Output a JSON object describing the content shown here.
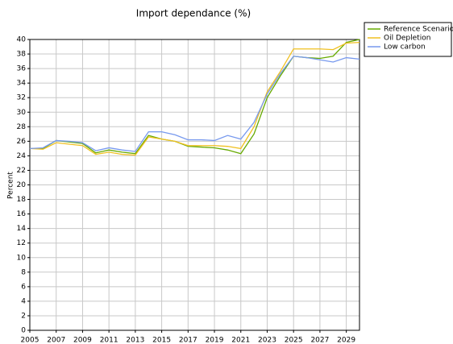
{
  "chart_data": {
    "type": "line",
    "title": "Import dependance (%)",
    "y_label": "Percent",
    "x": [
      2005,
      2006,
      2007,
      2008,
      2009,
      2010,
      2011,
      2012,
      2013,
      2014,
      2015,
      2016,
      2017,
      2018,
      2019,
      2020,
      2021,
      2022,
      2023,
      2024,
      2025,
      2026,
      2027,
      2028,
      2029,
      2030
    ],
    "series": [
      {
        "name": "Reference Scenario",
        "color": "#66aa00",
        "values": [
          25,
          25,
          26.1,
          25.9,
          25.7,
          24.4,
          24.8,
          24.5,
          24.3,
          26.8,
          26.3,
          26.0,
          25.3,
          25.2,
          25.1,
          24.8,
          24.3,
          27,
          32,
          35,
          37.7,
          37.5,
          37.4,
          37.7,
          39.6,
          40
        ]
      },
      {
        "name": "Oil Depletion",
        "color": "#f0c020",
        "values": [
          25,
          24.9,
          25.8,
          25.6,
          25.4,
          24.2,
          24.5,
          24.2,
          24.1,
          26.6,
          26.3,
          26.0,
          25.4,
          25.4,
          25.4,
          25.3,
          25.0,
          28.0,
          32.8,
          35.6,
          38.7,
          38.7,
          38.7,
          38.6,
          39.5,
          39.6
        ]
      },
      {
        "name": "Low carbon",
        "color": "#7799ee",
        "values": [
          25,
          25.1,
          26.1,
          26.0,
          25.8,
          24.7,
          25.1,
          24.8,
          24.6,
          27.3,
          27.3,
          26.9,
          26.2,
          26.2,
          26.1,
          26.8,
          26.3,
          28.6,
          32.5,
          35.3,
          37.7,
          37.5,
          37.2,
          36.9,
          37.5,
          37.3
        ]
      }
    ],
    "xlim": [
      2005,
      2030
    ],
    "xticks": [
      2005,
      2007,
      2009,
      2011,
      2013,
      2015,
      2017,
      2019,
      2021,
      2023,
      2025,
      2027,
      2029
    ],
    "ylim": [
      0,
      40
    ],
    "yticks": [
      0,
      2,
      4,
      6,
      8,
      10,
      12,
      14,
      16,
      18,
      20,
      22,
      24,
      26,
      28,
      30,
      32,
      34,
      36,
      38,
      40
    ],
    "grid": true,
    "legend": "top-right"
  }
}
